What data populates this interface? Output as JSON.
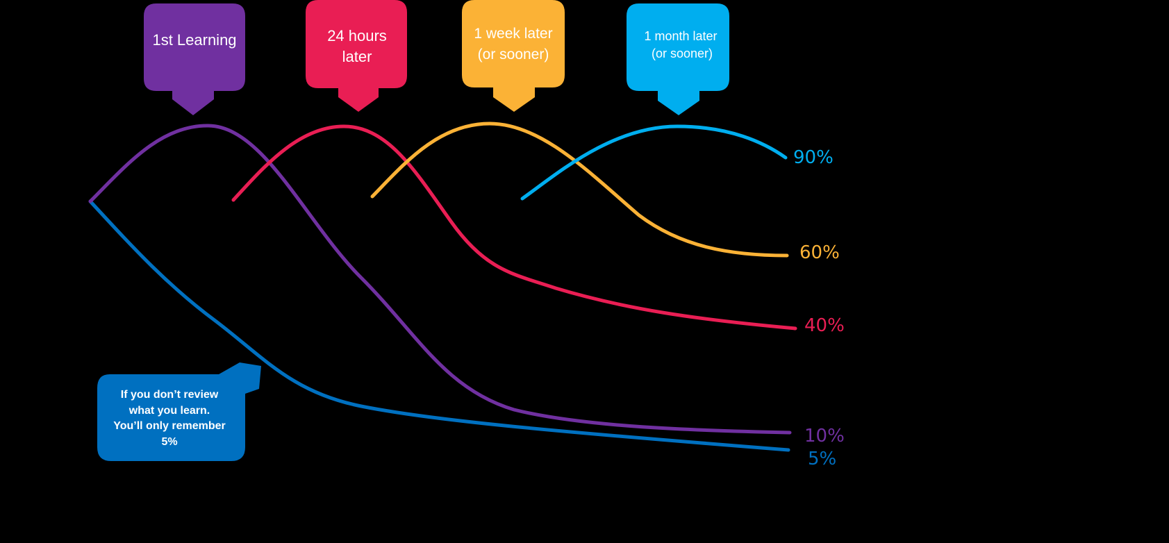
{
  "colors": {
    "background": "#000000",
    "purple": "#7030A0",
    "red": "#E91E54",
    "orange": "#FBB236",
    "cyan": "#00AEEF",
    "blue": "#0070C0"
  },
  "callouts": [
    {
      "lines": [
        "1st Learning"
      ],
      "color": "#7030A0"
    },
    {
      "lines": [
        "24 hours",
        "later"
      ],
      "color": "#E91E54"
    },
    {
      "lines": [
        "1 week later",
        "(or sooner)"
      ],
      "color": "#FBB236"
    },
    {
      "lines": [
        "1 month later",
        "(or sooner)"
      ],
      "color": "#00AEEF"
    }
  ],
  "curves": [
    {
      "label": "90%",
      "color": "#00AEEF"
    },
    {
      "label": "60%",
      "color": "#FBB236"
    },
    {
      "label": "40%",
      "color": "#E91E54"
    },
    {
      "label": "10%",
      "color": "#7030A0"
    },
    {
      "label": "5%",
      "color": "#0070C0"
    }
  ],
  "note": {
    "lines": [
      "If you don’t review",
      "what you learn.",
      "You’ll only remember",
      "5%"
    ],
    "color": "#0070C0"
  }
}
